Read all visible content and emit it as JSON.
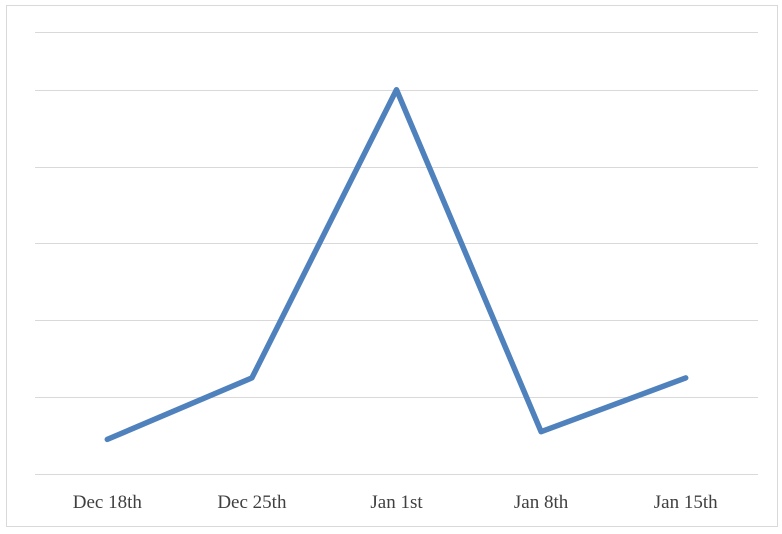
{
  "chart_data": {
    "type": "line",
    "categories": [
      "Dec 18th",
      "Dec 25th",
      "Jan 1st",
      "Jan 8th",
      "Jan 15th"
    ],
    "series": [
      {
        "values": [
          0.45,
          1.25,
          5.0,
          0.55,
          1.25
        ]
      }
    ],
    "ylim": [
      0,
      5.75
    ],
    "ygrid_step": 1,
    "grid": true,
    "legend": "none",
    "title": "",
    "xlabel": "",
    "ylabel": "",
    "colors": {
      "line": "#4f81bd",
      "grid": "#d9d9d9",
      "frame": "#d9d9d9",
      "tick_text": "#404040"
    }
  }
}
